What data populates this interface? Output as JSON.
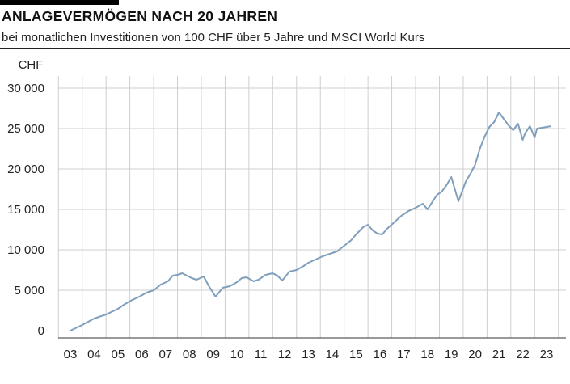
{
  "title": "ANLAGEVERMÖGEN NACH 20 JAHREN",
  "subtitle": "bei monatlichen Investitionen von 100 CHF über 5 Jahre und MSCI World Kurs",
  "colors": {
    "line": "#7f9fbd",
    "grid": "#cfcfcf",
    "axis": "#333333"
  },
  "chart_data": {
    "type": "line",
    "title": "ANLAGEVERMÖGEN NACH 20 JAHREN",
    "subtitle": "bei monatlichen Investitionen von 100 CHF über 5 Jahre und MSCI World Kurs",
    "ylabel": "CHF",
    "xlabel": "",
    "ylim": [
      0,
      30000
    ],
    "xlim": [
      2003,
      2023
    ],
    "yticks": [
      0,
      5000,
      10000,
      15000,
      20000,
      25000,
      30000
    ],
    "ytick_labels": [
      "0",
      "5 000",
      "10 000",
      "15 000",
      "20 000",
      "25 000",
      "30 000"
    ],
    "xtick_labels": [
      "03",
      "04",
      "05",
      "06",
      "07",
      "08",
      "09",
      "10",
      "11",
      "12",
      "13",
      "14",
      "15",
      "16",
      "17",
      "18",
      "19",
      "20",
      "21",
      "22",
      "23"
    ],
    "grid": true,
    "series": [
      {
        "name": "Anlagevermögen",
        "x": [
          2003.0,
          2003.5,
          2004.0,
          2004.5,
          2005.0,
          2005.3,
          2005.6,
          2005.9,
          2006.2,
          2006.5,
          2006.8,
          2007.1,
          2007.3,
          2007.5,
          2007.7,
          2007.9,
          2008.1,
          2008.3,
          2008.6,
          2008.8,
          2009.1,
          2009.4,
          2009.7,
          2010.0,
          2010.2,
          2010.4,
          2010.7,
          2010.9,
          2011.2,
          2011.5,
          2011.7,
          2011.9,
          2012.2,
          2012.5,
          2012.8,
          2013.0,
          2013.3,
          2013.6,
          2013.9,
          2014.2,
          2014.5,
          2014.8,
          2015.0,
          2015.3,
          2015.5,
          2015.7,
          2015.9,
          2016.1,
          2016.3,
          2016.6,
          2016.9,
          2017.2,
          2017.5,
          2017.8,
          2018.0,
          2018.2,
          2018.4,
          2018.6,
          2018.8,
          2019.0,
          2019.3,
          2019.6,
          2019.8,
          2020.0,
          2020.2,
          2020.4,
          2020.6,
          2020.8,
          2021.0,
          2021.2,
          2021.4,
          2021.6,
          2021.8,
          2022.0,
          2022.1,
          2022.3,
          2022.5,
          2022.6,
          2022.8,
          2023.0,
          2023.2
        ],
        "values": [
          0,
          700,
          1500,
          2000,
          2700,
          3300,
          3800,
          4200,
          4700,
          5000,
          5700,
          6100,
          6800,
          6900,
          7100,
          6800,
          6500,
          6300,
          6700,
          5600,
          4200,
          5300,
          5500,
          6000,
          6500,
          6600,
          6100,
          6300,
          6900,
          7100,
          6800,
          6200,
          7300,
          7500,
          8000,
          8400,
          8800,
          9200,
          9500,
          9800,
          10500,
          11200,
          11900,
          12800,
          13100,
          12400,
          12000,
          11900,
          12600,
          13400,
          14200,
          14800,
          15200,
          15700,
          15000,
          15900,
          16800,
          17200,
          18000,
          19000,
          16000,
          18400,
          19400,
          20500,
          22500,
          24000,
          25200,
          25800,
          27000,
          26200,
          25400,
          24800,
          25600,
          23600,
          24400,
          25300,
          23900,
          25000,
          25100,
          25200,
          25300
        ]
      }
    ]
  }
}
